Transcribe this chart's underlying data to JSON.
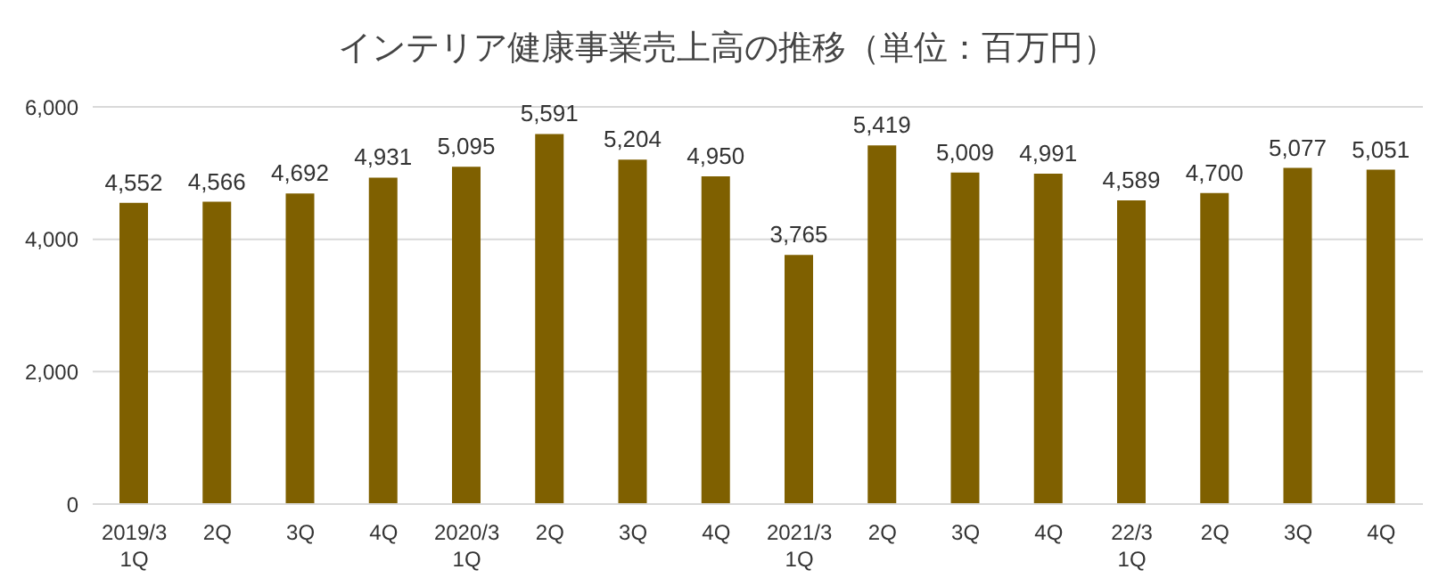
{
  "chart_data": {
    "type": "bar",
    "title": "インテリア健康事業売上高の推移（単位：百万円）",
    "categories": [
      "2019/3\n1Q",
      "2Q",
      "3Q",
      "4Q",
      "2020/3\n1Q",
      "2Q",
      "3Q",
      "4Q",
      "2021/3\n1Q",
      "2Q",
      "3Q",
      "4Q",
      "22/3\n1Q",
      "2Q",
      "3Q",
      "4Q"
    ],
    "values": [
      4552,
      4566,
      4692,
      4931,
      5095,
      5591,
      5204,
      4950,
      3765,
      5419,
      5009,
      4991,
      4589,
      4700,
      5077,
      5051
    ],
    "value_labels": [
      "4,552",
      "4,566",
      "4,692",
      "4,931",
      "5,095",
      "5,591",
      "5,204",
      "4,950",
      "3,765",
      "5,419",
      "5,009",
      "4,991",
      "4,589",
      "4,700",
      "5,077",
      "5,051"
    ],
    "color": "#7f6000",
    "ylim": [
      0,
      6000
    ],
    "yticks": [
      {
        "value": 0,
        "label": "0"
      },
      {
        "value": 2000,
        "label": "2,000"
      },
      {
        "value": 4000,
        "label": "4,000"
      },
      {
        "value": 6000,
        "label": "6,000"
      }
    ],
    "grid": "y",
    "legend": false
  }
}
